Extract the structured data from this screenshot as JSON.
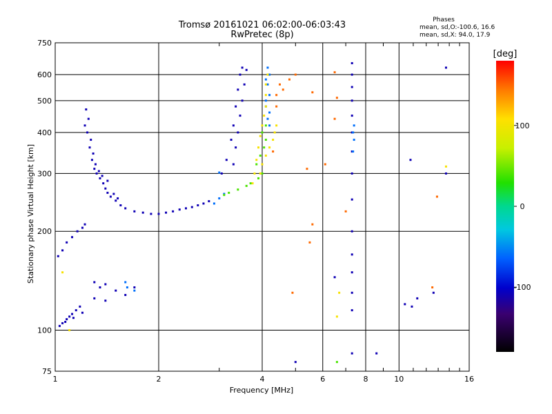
{
  "chart_data": {
    "type": "scatter",
    "title": "Tromsø 20161021 06:02:00-06:03:43",
    "subtitle": "RwPretec (8p)",
    "xlabel": "Frequency [MHz]",
    "ylabel": "Stationary phase Virtual Height [km]",
    "x_scale": "log2",
    "y_scale": "log",
    "xlim": [
      1,
      16
    ],
    "ylim": [
      75,
      750
    ],
    "x_ticks": [
      1,
      2,
      4,
      6,
      8,
      10,
      16
    ],
    "y_ticks": [
      75,
      100,
      200,
      300,
      400,
      500,
      600,
      750
    ],
    "grid": true,
    "stats": {
      "heading": "Phases",
      "line_o": "mean, sd,O:-100.6, 16.6",
      "line_x": "mean, sd,X:  94.0, 17.9"
    },
    "colorbar": {
      "label": "[deg]",
      "range": [
        -180,
        180
      ],
      "ticks": [
        100,
        0,
        -100
      ]
    },
    "series": [
      {
        "color_value": -110,
        "points": [
          [
            1.05,
            105
          ],
          [
            1.08,
            108
          ],
          [
            1.1,
            110
          ],
          [
            1.12,
            112
          ],
          [
            1.15,
            115
          ],
          [
            1.18,
            118
          ],
          [
            1.03,
            103
          ],
          [
            1.07,
            106
          ],
          [
            1.13,
            109
          ],
          [
            1.2,
            113
          ],
          [
            1.02,
            168
          ],
          [
            1.05,
            175
          ],
          [
            1.08,
            185
          ],
          [
            1.12,
            192
          ],
          [
            1.16,
            200
          ],
          [
            1.2,
            205
          ],
          [
            1.22,
            210
          ],
          [
            1.22,
            420
          ],
          [
            1.24,
            400
          ],
          [
            1.26,
            360
          ],
          [
            1.28,
            330
          ],
          [
            1.3,
            310
          ],
          [
            1.32,
            300
          ],
          [
            1.35,
            290
          ],
          [
            1.38,
            280
          ],
          [
            1.4,
            270
          ],
          [
            1.42,
            262
          ],
          [
            1.45,
            255
          ],
          [
            1.5,
            248
          ],
          [
            1.55,
            240
          ],
          [
            1.6,
            235
          ],
          [
            1.7,
            230
          ],
          [
            1.8,
            228
          ],
          [
            1.9,
            226
          ],
          [
            2.0,
            226
          ],
          [
            2.1,
            228
          ],
          [
            2.2,
            230
          ],
          [
            2.3,
            233
          ],
          [
            2.4,
            235
          ],
          [
            2.5,
            237
          ],
          [
            2.6,
            240
          ],
          [
            2.7,
            243
          ],
          [
            2.8,
            247
          ],
          [
            1.23,
            470
          ],
          [
            1.25,
            440
          ],
          [
            1.27,
            380
          ],
          [
            1.29,
            345
          ],
          [
            1.31,
            320
          ],
          [
            1.34,
            305
          ],
          [
            1.37,
            295
          ],
          [
            1.42,
            285
          ],
          [
            1.48,
            260
          ],
          [
            1.52,
            252
          ],
          [
            1.3,
            140
          ],
          [
            1.35,
            135
          ],
          [
            1.4,
            138
          ],
          [
            1.5,
            132
          ],
          [
            1.6,
            128
          ],
          [
            1.7,
            135
          ],
          [
            1.3,
            125
          ],
          [
            1.4,
            123
          ],
          [
            3.05,
            300
          ],
          [
            3.15,
            330
          ],
          [
            3.25,
            380
          ],
          [
            3.3,
            420
          ],
          [
            3.35,
            480
          ],
          [
            3.4,
            540
          ],
          [
            3.45,
            600
          ],
          [
            3.5,
            630
          ],
          [
            3.6,
            620
          ],
          [
            3.55,
            560
          ],
          [
            3.5,
            500
          ],
          [
            3.45,
            450
          ],
          [
            3.4,
            400
          ],
          [
            3.35,
            360
          ],
          [
            3.3,
            320
          ],
          [
            7.3,
            650
          ],
          [
            7.3,
            600
          ],
          [
            7.3,
            550
          ],
          [
            7.3,
            500
          ],
          [
            7.3,
            450
          ],
          [
            7.3,
            400
          ],
          [
            7.3,
            350
          ],
          [
            7.3,
            300
          ],
          [
            7.3,
            250
          ],
          [
            7.3,
            200
          ],
          [
            7.3,
            170
          ],
          [
            7.3,
            150
          ],
          [
            7.3,
            130
          ],
          [
            7.3,
            115
          ],
          [
            7.3,
            85
          ],
          [
            10.4,
            120
          ],
          [
            10.9,
            118
          ],
          [
            11.3,
            125
          ],
          [
            12.6,
            130
          ],
          [
            13.7,
            630
          ],
          [
            13.7,
            300
          ],
          [
            10.8,
            330
          ],
          [
            5.0,
            80
          ],
          [
            6.5,
            145
          ],
          [
            8.6,
            85
          ]
        ]
      },
      {
        "color_value": -60,
        "points": [
          [
            1.6,
            140
          ],
          [
            1.62,
            135
          ],
          [
            1.7,
            132
          ],
          [
            2.9,
            243
          ],
          [
            3.0,
            252
          ],
          [
            3.1,
            260
          ],
          [
            3.0,
            302
          ],
          [
            4.15,
            630
          ],
          [
            4.2,
            600
          ],
          [
            4.1,
            580
          ],
          [
            4.15,
            560
          ],
          [
            4.2,
            520
          ],
          [
            4.1,
            500
          ],
          [
            4.1,
            480
          ],
          [
            4.2,
            460
          ],
          [
            4.15,
            440
          ],
          [
            4.2,
            420
          ],
          [
            7.35,
            400
          ],
          [
            7.35,
            350
          ],
          [
            7.4,
            420
          ],
          [
            7.4,
            380
          ]
        ]
      },
      {
        "color_value": 40,
        "points": [
          [
            3.1,
            258
          ],
          [
            3.2,
            262
          ],
          [
            3.4,
            268
          ],
          [
            3.6,
            275
          ],
          [
            3.7,
            280
          ],
          [
            3.9,
            290
          ],
          [
            4.0,
            300
          ],
          [
            3.85,
            320
          ],
          [
            3.95,
            340
          ],
          [
            4.05,
            360
          ],
          [
            4.1,
            380
          ],
          [
            4.0,
            400
          ],
          [
            4.1,
            420
          ],
          [
            6.6,
            80
          ]
        ]
      },
      {
        "color_value": 100,
        "points": [
          [
            3.75,
            280
          ],
          [
            3.8,
            300
          ],
          [
            3.85,
            330
          ],
          [
            3.9,
            360
          ],
          [
            3.95,
            390
          ],
          [
            4.0,
            420
          ],
          [
            4.05,
            450
          ],
          [
            4.1,
            480
          ],
          [
            4.1,
            520
          ],
          [
            4.1,
            560
          ],
          [
            4.15,
            600
          ],
          [
            3.95,
            300
          ],
          [
            4.0,
            320
          ],
          [
            4.1,
            340
          ],
          [
            4.2,
            360
          ],
          [
            4.3,
            380
          ],
          [
            4.35,
            400
          ],
          [
            4.4,
            420
          ],
          [
            1.1,
            100
          ],
          [
            6.6,
            110
          ],
          [
            6.7,
            130
          ],
          [
            1.05,
            150
          ],
          [
            13.7,
            315
          ]
        ]
      },
      {
        "color_value": 150,
        "points": [
          [
            4.4,
            520
          ],
          [
            4.5,
            560
          ],
          [
            4.8,
            580
          ],
          [
            4.6,
            540
          ],
          [
            5.0,
            600
          ],
          [
            5.6,
            530
          ],
          [
            6.5,
            610
          ],
          [
            6.6,
            510
          ],
          [
            6.5,
            440
          ],
          [
            4.4,
            480
          ],
          [
            4.3,
            350
          ],
          [
            5.4,
            310
          ],
          [
            6.1,
            320
          ],
          [
            5.6,
            210
          ],
          [
            5.5,
            185
          ],
          [
            7.0,
            230
          ],
          [
            4.9,
            130
          ],
          [
            12.5,
            135
          ],
          [
            12.9,
            255
          ]
        ]
      }
    ]
  }
}
